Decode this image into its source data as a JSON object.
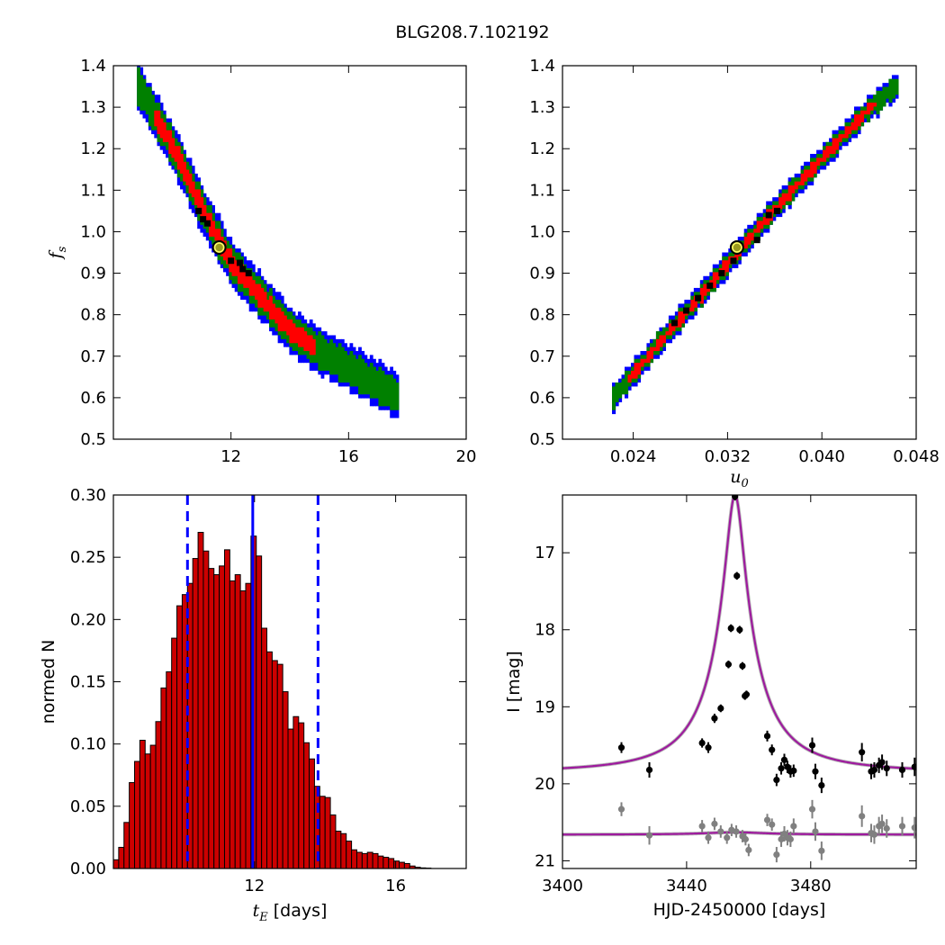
{
  "figure": {
    "title": "BLG208.7.102192",
    "colors": {
      "outer": "#0000ff",
      "mid": "#008000",
      "inner": "#ff0000",
      "samples": "#000000",
      "best_fill": "#9b9b20",
      "best_edge": "#ffff66",
      "hist_fill": "#cc0000",
      "hist_edge": "#000000",
      "vline": "#0000ff",
      "model": "#9e1a9e",
      "model_alt": "#888888",
      "points_main": "#000000",
      "points_alt": "#808080"
    }
  },
  "chart_data": [
    {
      "id": "tE_vs_fs",
      "type": "heatmap",
      "xlabel": "",
      "ylabel": "f_s",
      "xlim": [
        8.0,
        20.0
      ],
      "ylim": [
        0.5,
        1.4
      ],
      "xticks": [
        "12",
        "16",
        "20"
      ],
      "yticks": [
        "0.5",
        "0.6",
        "0.7",
        "0.8",
        "0.9",
        "1.0",
        "1.1",
        "1.2",
        "1.3",
        "1.4"
      ],
      "band": {
        "centerline": [
          [
            8.8,
            1.35
          ],
          [
            10.0,
            1.2
          ],
          [
            11.0,
            1.05
          ],
          [
            12.0,
            0.92
          ],
          [
            13.0,
            0.84
          ],
          [
            14.0,
            0.76
          ],
          [
            15.0,
            0.71
          ],
          [
            16.0,
            0.67
          ],
          [
            17.0,
            0.63
          ],
          [
            17.6,
            0.605
          ]
        ],
        "half_widths_fs": {
          "outer": 0.055,
          "mid": 0.04,
          "inner": 0.022
        },
        "inner_range_x": [
          9.3,
          14.8
        ]
      },
      "samples": [
        [
          10.9,
          1.05
        ],
        [
          11.05,
          1.03
        ],
        [
          11.2,
          1.02
        ],
        [
          12.0,
          0.93
        ],
        [
          12.3,
          0.925
        ],
        [
          12.4,
          0.91
        ],
        [
          12.6,
          0.9
        ]
      ],
      "best_fit": [
        11.6,
        0.962
      ]
    },
    {
      "id": "u0_vs_fs",
      "type": "heatmap",
      "xlabel": "u_0",
      "ylabel": "",
      "xlim": [
        0.018,
        0.048
      ],
      "ylim": [
        0.5,
        1.4
      ],
      "xticks": [
        "0.024",
        "0.032",
        "0.040",
        "0.048"
      ],
      "yticks": [
        "0.5",
        "0.6",
        "0.7",
        "0.8",
        "0.9",
        "1.0",
        "1.1",
        "1.2",
        "1.3",
        "1.4"
      ],
      "band": {
        "centerline": [
          [
            0.0222,
            0.6
          ],
          [
            0.026,
            0.73
          ],
          [
            0.03,
            0.86
          ],
          [
            0.033,
            0.96
          ],
          [
            0.036,
            1.06
          ],
          [
            0.04,
            1.18
          ],
          [
            0.044,
            1.3
          ],
          [
            0.0462,
            1.35
          ]
        ],
        "half_widths_fs": {
          "outer": 0.03,
          "mid": 0.022,
          "inner": 0.012
        },
        "inner_range_x": [
          0.0235,
          0.0445
        ]
      },
      "samples": [
        [
          0.0275,
          0.78
        ],
        [
          0.0285,
          0.81
        ],
        [
          0.0295,
          0.84
        ],
        [
          0.0305,
          0.87
        ],
        [
          0.0315,
          0.9
        ],
        [
          0.0325,
          0.93
        ],
        [
          0.0345,
          0.98
        ],
        [
          0.0355,
          1.04
        ],
        [
          0.0362,
          1.05
        ]
      ],
      "best_fit": [
        0.0328,
        0.962
      ]
    },
    {
      "id": "tE_histogram",
      "type": "bar",
      "xlabel": "t_E  [days]",
      "ylabel": "normed N",
      "xlim": [
        8.0,
        18.0
      ],
      "ylim": [
        0.0,
        0.3
      ],
      "xticks": [
        "12",
        "16"
      ],
      "yticks": [
        "0.00",
        "0.05",
        "0.10",
        "0.15",
        "0.20",
        "0.25",
        "0.30"
      ],
      "bin_start": 8.0,
      "bin_width": 0.15,
      "values": [
        0.007,
        0.017,
        0.037,
        0.069,
        0.086,
        0.103,
        0.092,
        0.099,
        0.118,
        0.145,
        0.158,
        0.185,
        0.211,
        0.22,
        0.229,
        0.249,
        0.27,
        0.255,
        0.241,
        0.236,
        0.243,
        0.256,
        0.231,
        0.236,
        0.223,
        0.229,
        0.267,
        0.251,
        0.193,
        0.174,
        0.167,
        0.164,
        0.142,
        0.112,
        0.122,
        0.117,
        0.101,
        0.088,
        0.066,
        0.058,
        0.057,
        0.043,
        0.03,
        0.028,
        0.022,
        0.015,
        0.013,
        0.012,
        0.013,
        0.012,
        0.01,
        0.009,
        0.008,
        0.006,
        0.005,
        0.004,
        0.002,
        0.001,
        0.0005,
        0.0003
      ],
      "vlines": {
        "solid": 11.95,
        "dashed": [
          10.1,
          13.8
        ]
      }
    },
    {
      "id": "light_curve",
      "type": "scatter",
      "xlabel": "HJD-2450000 [days]",
      "ylabel": "I [mag]",
      "xlim": [
        3400,
        3514
      ],
      "ylim": [
        21.1,
        16.25
      ],
      "xticks": [
        "3400",
        "3440",
        "3480"
      ],
      "yticks": [
        "17",
        "18",
        "19",
        "20",
        "21"
      ],
      "model_main": {
        "baseline": 19.86,
        "peak_mag": 16.25,
        "t0": 3455.6,
        "shape_scale": 2.6
      },
      "model_alt": {
        "baseline": 20.66,
        "peak_mag": 20.63,
        "t0": 3455.6,
        "shape_scale": 12.0
      },
      "series": [
        {
          "name": "",
          "points": [
            [
              3419,
              19.53,
              0.07
            ],
            [
              3428,
              19.82,
              0.1
            ],
            [
              3445,
              19.47,
              0.06
            ],
            [
              3447,
              19.53,
              0.07
            ],
            [
              3449,
              19.15,
              0.06
            ],
            [
              3451,
              19.02,
              0.05
            ],
            [
              3453.5,
              18.45,
              0.05
            ],
            [
              3454.3,
              17.98,
              0.05
            ],
            [
              3455.6,
              16.27,
              0.05
            ],
            [
              3456.2,
              17.3,
              0.05
            ],
            [
              3457.1,
              18.0,
              0.05
            ],
            [
              3458.0,
              18.47,
              0.05
            ],
            [
              3458.8,
              18.86,
              0.05
            ],
            [
              3459.3,
              18.84,
              0.05
            ],
            [
              3466,
              19.38,
              0.07
            ],
            [
              3467.5,
              19.56,
              0.07
            ],
            [
              3469,
              19.95,
              0.08
            ],
            [
              3470.5,
              19.8,
              0.08
            ],
            [
              3471.5,
              19.69,
              0.08
            ],
            [
              3472.5,
              19.78,
              0.08
            ],
            [
              3473.5,
              19.84,
              0.08
            ],
            [
              3474.5,
              19.83,
              0.08
            ],
            [
              3480.5,
              19.5,
              0.1
            ],
            [
              3481.5,
              19.84,
              0.1
            ],
            [
              3483.5,
              20.02,
              0.1
            ],
            [
              3496.5,
              19.59,
              0.12
            ],
            [
              3499.5,
              19.84,
              0.1
            ],
            [
              3500.5,
              19.82,
              0.1
            ],
            [
              3502,
              19.76,
              0.1
            ],
            [
              3503,
              19.72,
              0.1
            ],
            [
              3504.5,
              19.8,
              0.1
            ],
            [
              3509.5,
              19.82,
              0.1
            ],
            [
              3513.5,
              19.78,
              0.12
            ]
          ]
        },
        {
          "name": "",
          "points": [
            [
              3419,
              20.33,
              0.09
            ],
            [
              3428,
              20.67,
              0.12
            ],
            [
              3445,
              20.55,
              0.08
            ],
            [
              3447,
              20.7,
              0.08
            ],
            [
              3449,
              20.52,
              0.08
            ],
            [
              3451,
              20.62,
              0.08
            ],
            [
              3453,
              20.7,
              0.08
            ],
            [
              3454.5,
              20.6,
              0.08
            ],
            [
              3456,
              20.62,
              0.08
            ],
            [
              3458,
              20.68,
              0.08
            ],
            [
              3459,
              20.72,
              0.08
            ],
            [
              3460,
              20.86,
              0.08
            ],
            [
              3466,
              20.47,
              0.08
            ],
            [
              3467.5,
              20.53,
              0.08
            ],
            [
              3469,
              20.92,
              0.1
            ],
            [
              3470.5,
              20.72,
              0.1
            ],
            [
              3471.5,
              20.65,
              0.1
            ],
            [
              3472.5,
              20.7,
              0.1
            ],
            [
              3473.5,
              20.72,
              0.1
            ],
            [
              3474.5,
              20.55,
              0.1
            ],
            [
              3480.5,
              20.33,
              0.12
            ],
            [
              3481.5,
              20.62,
              0.12
            ],
            [
              3483.5,
              20.87,
              0.12
            ],
            [
              3496.5,
              20.42,
              0.14
            ],
            [
              3499.5,
              20.64,
              0.12
            ],
            [
              3500.5,
              20.66,
              0.12
            ],
            [
              3502,
              20.55,
              0.12
            ],
            [
              3503,
              20.52,
              0.12
            ],
            [
              3504.5,
              20.58,
              0.12
            ],
            [
              3509.5,
              20.55,
              0.12
            ],
            [
              3513.5,
              20.57,
              0.14
            ]
          ]
        }
      ]
    }
  ]
}
